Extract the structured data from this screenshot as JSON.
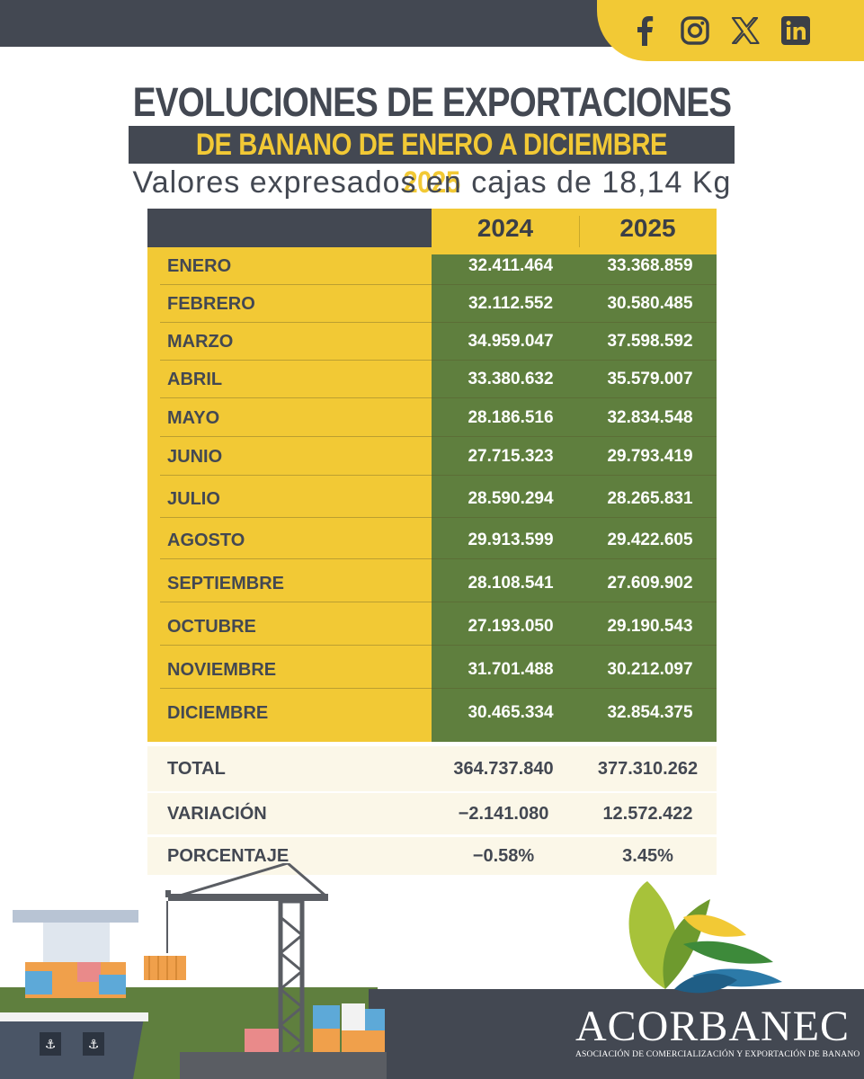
{
  "social": {
    "icons": [
      "facebook-icon",
      "instagram-icon",
      "x-icon",
      "linkedin-icon"
    ],
    "bg_color": "#f2c935"
  },
  "header": {
    "title_line1": "EVOLUCIONES DE EXPORTACIONES",
    "title_line2": "DE BANANO DE ENERO A DICIEMBRE 2025",
    "subtitle": "Valores expresados en cajas de 18,14 Kg"
  },
  "table": {
    "years": [
      "2024",
      "2025"
    ],
    "rows": [
      {
        "month": "ENERO",
        "v2024": "32.411.464",
        "v2025": "33.368.859"
      },
      {
        "month": "FEBRERO",
        "v2024": "32.112.552",
        "v2025": "30.580.485"
      },
      {
        "month": "MARZO",
        "v2024": "34.959.047",
        "v2025": "37.598.592"
      },
      {
        "month": "ABRIL",
        "v2024": "33.380.632",
        "v2025": "35.579.007"
      },
      {
        "month": "MAYO",
        "v2024": "28.186.516",
        "v2025": "32.834.548"
      },
      {
        "month": "JUNIO",
        "v2024": "27.715.323",
        "v2025": "29.793.419"
      },
      {
        "month": "JULIO",
        "v2024": "28.590.294",
        "v2025": "28.265.831"
      },
      {
        "month": "AGOSTO",
        "v2024": "29.913.599",
        "v2025": "29.422.605"
      },
      {
        "month": "SEPTIEMBRE",
        "v2024": "28.108.541",
        "v2025": "27.609.902"
      },
      {
        "month": "OCTUBRE",
        "v2024": "27.193.050",
        "v2025": "29.190.543"
      },
      {
        "month": "NOVIEMBRE",
        "v2024": "31.701.488",
        "v2025": "30.212.097"
      },
      {
        "month": "DICIEMBRE",
        "v2024": "30.465.334",
        "v2025": "32.854.375"
      }
    ],
    "total": {
      "label": "TOTAL",
      "v2024": "364.737.840",
      "v2025": "377.310.262"
    },
    "variacion": {
      "label": "VARIACIÓN",
      "v2024": "−2.141.080",
      "v2025": "12.572.422"
    },
    "porcentaje": {
      "label": "PORCENTAJE",
      "v2024": "−0.58%",
      "v2025": "3.45%"
    }
  },
  "brand": {
    "name": "ACORBANEC",
    "tagline": "ASOCIACIÓN DE COMERCIALIZACIÓN Y EXPORTACIÓN DE BANANO"
  },
  "colors": {
    "dark": "#434852",
    "yellow": "#f2c935",
    "green": "#5f7f3e",
    "cream": "#fbf7e8"
  }
}
